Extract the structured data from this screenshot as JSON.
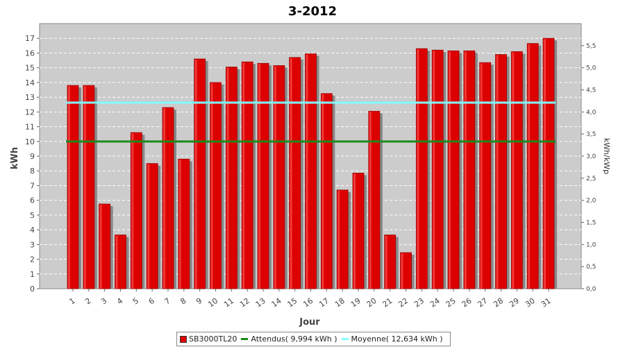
{
  "chart_data": {
    "type": "bar",
    "title": "3-2012",
    "xlabel": "Jour",
    "ylabel": "kWh",
    "y2label": "kWh/kWp",
    "ylim": [
      0,
      18
    ],
    "y2lim": [
      0,
      6
    ],
    "yticks": [
      0,
      1,
      2,
      3,
      4,
      5,
      6,
      7,
      8,
      9,
      10,
      11,
      12,
      13,
      14,
      15,
      16,
      17
    ],
    "y2ticks": [
      "0,0",
      "0,5",
      "1,0",
      "1,5",
      "2,0",
      "2,5",
      "3,0",
      "3,5",
      "4,0",
      "4,5",
      "5,0",
      "5,5"
    ],
    "categories": [
      "1",
      "2",
      "3",
      "4",
      "5",
      "6",
      "7",
      "8",
      "9",
      "10",
      "11",
      "12",
      "13",
      "14",
      "15",
      "16",
      "17",
      "18",
      "19",
      "20",
      "21",
      "22",
      "23",
      "24",
      "25",
      "26",
      "27",
      "28",
      "29",
      "30",
      "31"
    ],
    "series": [
      {
        "name": "SB3000TL20",
        "color": "#dd0000",
        "values": [
          13.8,
          13.8,
          5.75,
          3.65,
          10.6,
          8.5,
          12.3,
          8.8,
          15.6,
          14.0,
          15.05,
          15.4,
          15.3,
          15.15,
          15.7,
          15.95,
          13.25,
          6.7,
          7.85,
          12.05,
          3.65,
          2.45,
          16.3,
          16.2,
          16.15,
          16.15,
          15.35,
          15.9,
          16.1,
          16.65,
          17.0
        ]
      }
    ],
    "reference_lines": [
      {
        "name": "Attendus( 9,994 kWh )",
        "value": 9.994,
        "color": "#1a8a1a"
      },
      {
        "name": "Moyenne( 12,634 kWh )",
        "value": 12.634,
        "color": "#80ffff"
      }
    ],
    "grid": true,
    "background": "#cccccc",
    "legend": "bottom"
  }
}
